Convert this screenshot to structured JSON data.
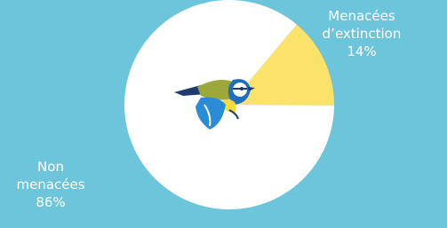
{
  "chart_data": {
    "type": "pie",
    "categories": [
      "Menacées d’extinction",
      "Non menacées"
    ],
    "values": [
      14,
      86
    ],
    "value_labels": [
      "14%",
      "86%"
    ],
    "colors": [
      "#fbe26a",
      "#ffffff"
    ]
  }
}
